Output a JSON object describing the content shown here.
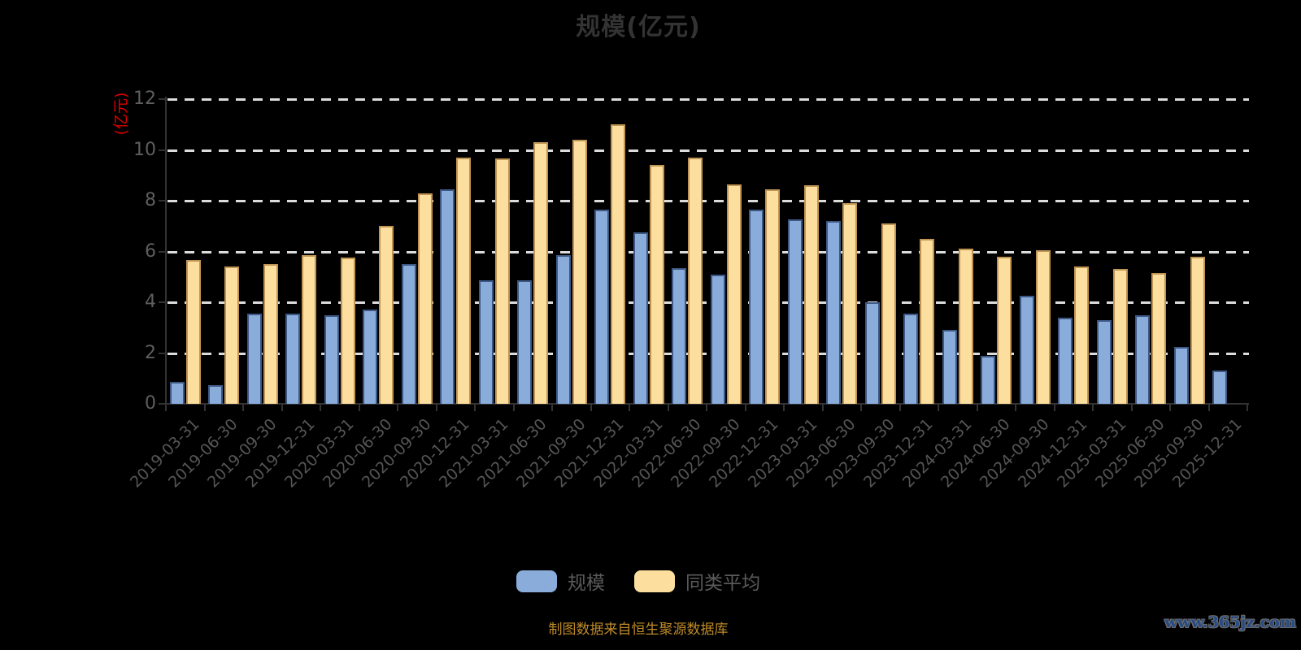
{
  "title": "规模(亿元)",
  "y_axis": {
    "unit_label": "(亿元)",
    "unit_label_color": "#DD0000",
    "tick_values": [
      0,
      2,
      4,
      6,
      8,
      10,
      12
    ]
  },
  "legend": {
    "items": [
      {
        "label": "规模",
        "color": "#8AACDB"
      },
      {
        "label": "同类平均",
        "color": "#FCDE9E"
      }
    ]
  },
  "footer": {
    "source_note": "制图数据来自恒生聚源数据库",
    "watermark": "www.365jz.com"
  },
  "colors": {
    "background": "#000000",
    "title": "#333333",
    "axis": "#333333",
    "gridline": "#DCDCDC",
    "tick_label": "#5E5E5E",
    "x_label": "#555555",
    "series_scale": "#8AACDB",
    "series_scale_border": "#3D5884",
    "series_peer": "#FCDE9E",
    "series_peer_border": "#C09553",
    "source_note": "#BE8A28",
    "watermark": "#274B84"
  },
  "chart_data": {
    "type": "bar",
    "title": "规模(亿元)",
    "xlabel": "",
    "ylabel": "(亿元)",
    "ylim": [
      0,
      12
    ],
    "grid": "horizontal-dashed",
    "legend_position": "bottom",
    "categories": [
      "2019-03-31",
      "2019-06-30",
      "2019-09-30",
      "2019-12-31",
      "2020-03-31",
      "2020-06-30",
      "2020-09-30",
      "2020-12-31",
      "2021-03-31",
      "2021-06-30",
      "2021-09-30",
      "2021-12-31",
      "2022-03-31",
      "2022-06-30",
      "2022-09-30",
      "2022-12-31",
      "2023-03-31",
      "2023-06-30",
      "2023-09-30",
      "2023-12-31",
      "2024-03-31",
      "2024-06-30",
      "2024-09-30",
      "2024-12-31",
      "2025-03-31",
      "2025-06-30",
      "2025-09-30",
      "2025-12-31"
    ],
    "series": [
      {
        "name": "规模",
        "color": "#8AACDB",
        "values": [
          0.85,
          0.75,
          3.55,
          3.55,
          3.5,
          3.7,
          5.5,
          8.45,
          4.85,
          4.85,
          5.85,
          7.65,
          6.75,
          5.35,
          5.1,
          7.65,
          7.25,
          7.2,
          4.0,
          3.55,
          2.9,
          1.9,
          4.25,
          3.4,
          3.3,
          3.5,
          2.25,
          1.3
        ]
      },
      {
        "name": "同类平均",
        "color": "#FCDE9E",
        "values": [
          5.65,
          5.4,
          5.5,
          5.85,
          5.75,
          7.0,
          8.3,
          9.7,
          9.65,
          10.3,
          10.4,
          11.0,
          9.4,
          9.7,
          8.65,
          8.45,
          8.6,
          7.9,
          7.1,
          6.5,
          6.1,
          5.8,
          6.05,
          5.4,
          5.3,
          5.15,
          5.8,
          null
        ]
      }
    ]
  }
}
